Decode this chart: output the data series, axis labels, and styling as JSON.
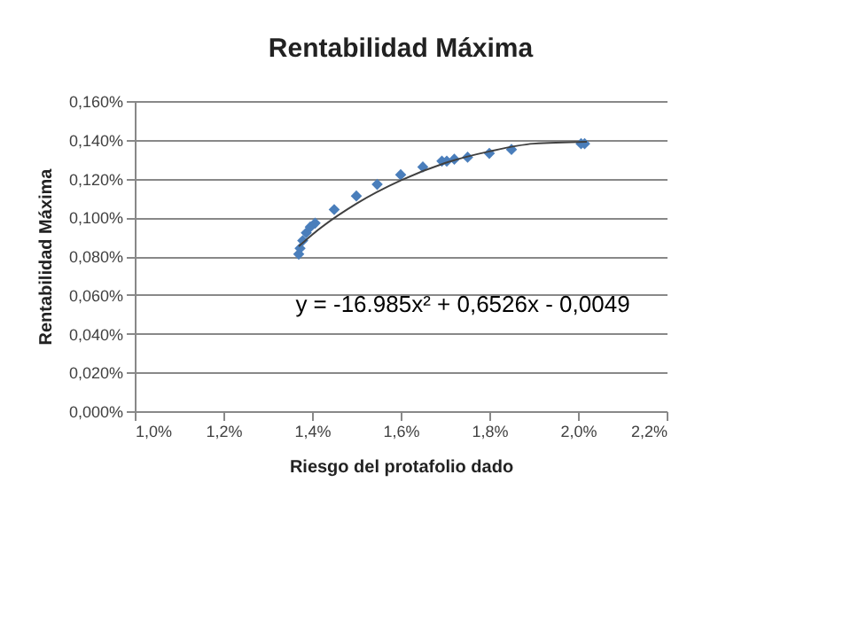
{
  "chart_data": {
    "type": "scatter",
    "title": "Rentabilidad Máxima",
    "xlabel": "Riesgo  del protafolio dado",
    "ylabel": "Rentabilidad Máxima",
    "annotations": [
      "y = -16.985x² + 0,6526x - 0,0049"
    ],
    "marker": "diamond",
    "grid": "y",
    "xlim": [
      1.0,
      2.2
    ],
    "xticks": [
      {
        "value": 1.0,
        "label": "1,0%"
      },
      {
        "value": 1.2,
        "label": "1,2%"
      },
      {
        "value": 1.4,
        "label": "1,4%"
      },
      {
        "value": 1.6,
        "label": "1,6%"
      },
      {
        "value": 1.8,
        "label": "1,8%"
      },
      {
        "value": 2.0,
        "label": "2,0%"
      },
      {
        "value": 2.2,
        "label": "2,2%"
      }
    ],
    "ylim": [
      0,
      0.16
    ],
    "yticks": [
      {
        "value": 0,
        "label": "0,000%"
      },
      {
        "value": 0.02,
        "label": "0,020%"
      },
      {
        "value": 0.04,
        "label": "0,040%"
      },
      {
        "value": 0.06,
        "label": "0,060%"
      },
      {
        "value": 0.08,
        "label": "0,080%"
      },
      {
        "value": 0.1,
        "label": "0,100%"
      },
      {
        "value": 0.12,
        "label": "0,120%"
      },
      {
        "value": 0.14,
        "label": "0,140%"
      },
      {
        "value": 0.16,
        "label": "0,160%"
      }
    ],
    "series": [
      {
        "color": "#4a7ebb",
        "x": [
          1.37,
          1.373,
          1.379,
          1.387,
          1.396,
          1.407,
          1.45,
          1.5,
          1.547,
          1.6,
          1.65,
          1.693,
          1.704,
          1.721,
          1.751,
          1.8,
          1.85,
          2.007,
          2.015
        ],
        "values": [
          0.081,
          0.084,
          0.088,
          0.092,
          0.095,
          0.097,
          0.104,
          0.111,
          0.117,
          0.122,
          0.126,
          0.129,
          0.129,
          0.13,
          0.131,
          0.133,
          0.135,
          0.138,
          0.138
        ]
      },
      {
        "type": "line",
        "marker": "none",
        "color": "#404040",
        "x": [
          1.37,
          1.4,
          1.5,
          1.6,
          1.7,
          1.8,
          1.9,
          2.02
        ],
        "values": [
          0.085,
          0.091,
          0.107,
          0.119,
          0.128,
          0.134,
          0.138,
          0.139
        ]
      }
    ]
  }
}
